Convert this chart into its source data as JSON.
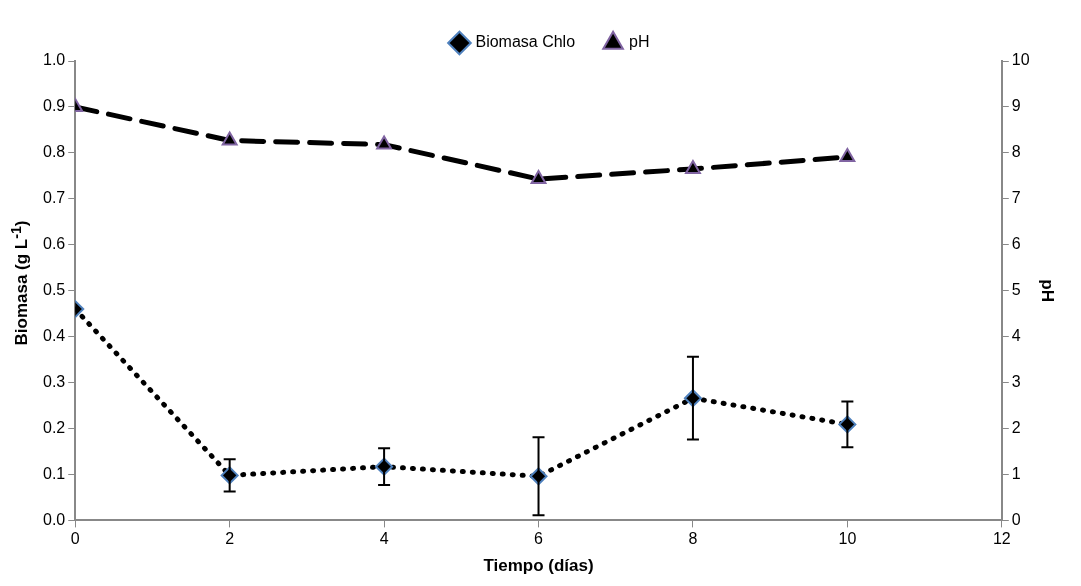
{
  "chart_data": {
    "type": "line",
    "xlabel": "Tiempo (días)",
    "ylabel": "Biomasa (g L$^{-1}$)",
    "y2label": "pH",
    "xlim": [
      0,
      12
    ],
    "xticks": [
      0,
      2,
      4,
      6,
      8,
      10,
      12
    ],
    "ylim": [
      0,
      1
    ],
    "yticks": [
      {
        "value": 0,
        "label": "0.0"
      },
      0.1,
      0.2,
      0.3,
      0.4,
      0.5,
      0.6,
      0.7,
      0.8,
      0.9,
      {
        "value": 1,
        "label": "1.0"
      }
    ],
    "y2lim": [
      0,
      10
    ],
    "y2ticks": [
      0,
      1,
      2,
      3,
      4,
      5,
      6,
      7,
      8,
      9,
      10
    ],
    "grid": false,
    "legend": "top",
    "series": [
      {
        "name": "Biomasa Chlo",
        "color": "#000000",
        "x": [
          0,
          2,
          4,
          6,
          8,
          10
        ],
        "values": [
          0.46,
          0.098,
          0.117,
          0.096,
          0.266,
          0.209
        ],
        "errors": [
          null,
          0.035,
          0.04,
          0.085,
          0.09,
          0.05
        ],
        "marker": "diamond",
        "line_style": "dotted"
      },
      {
        "name": "pH",
        "color": "#000000",
        "axis": "y2",
        "x": [
          0,
          2,
          4,
          6,
          8,
          10
        ],
        "values": [
          9.0,
          8.27,
          8.18,
          7.43,
          7.65,
          7.91
        ],
        "marker": "triangle",
        "line_style": "dashed"
      }
    ]
  }
}
